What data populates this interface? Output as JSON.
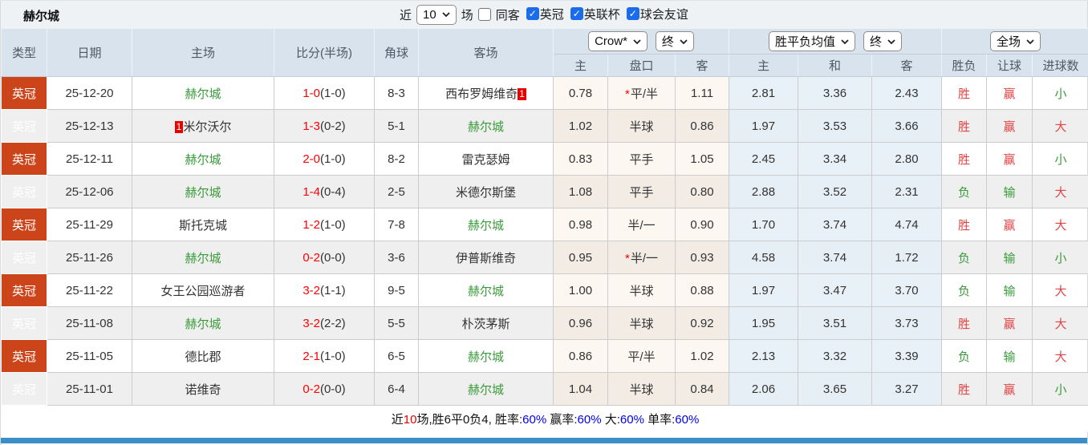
{
  "page": {
    "title": "赫尔城"
  },
  "colors": {
    "league_bg": "#cc4419",
    "self_team_green": "#3a9b3a",
    "score_red": "#ff0000",
    "win_red": "#e04444",
    "lose_green": "#3a9b3a",
    "checkbox_blue": "#1b6ceb",
    "bottom_bar_blue": "#3c8fc6",
    "header_bg": "#d9e3ed"
  },
  "controls": {
    "recent_label": "近",
    "recent_value": "10",
    "unit_label": "场",
    "same_opponent_label": "同客",
    "same_opponent_checked": false,
    "filters": [
      {
        "label": "英冠",
        "checked": true
      },
      {
        "label": "英联杯",
        "checked": true
      },
      {
        "label": "球会友谊",
        "checked": true
      }
    ]
  },
  "table": {
    "main_headers": [
      "类型",
      "日期",
      "主场",
      "比分(半场)",
      "角球",
      "客场"
    ],
    "odds_group": {
      "company_select": "Crow*",
      "state_select": "终"
    },
    "avg_group": {
      "label_select": "胜平负均值",
      "state_select": "终"
    },
    "scope_group": {
      "label_select": "全场"
    },
    "sub_headers": [
      "主",
      "盘口",
      "客",
      "主",
      "和",
      "客",
      "胜负",
      "让球",
      "进球数"
    ],
    "rows": [
      {
        "league": "英冠",
        "date": "25-12-20",
        "home": "赫尔城",
        "home_self": true,
        "home_badge_left": "",
        "home_badge_right": "",
        "score": "1-0",
        "half": "(1-0)",
        "corner": "8-3",
        "away": "西布罗姆维奇",
        "away_self": false,
        "away_badge_left": "",
        "away_badge_right": "1",
        "odds": {
          "h": "0.78",
          "star": "*",
          "hcp": "平/半",
          "a": "1.11"
        },
        "avg": {
          "h": "2.81",
          "d": "3.36",
          "a": "2.43"
        },
        "res": {
          "outcome": "胜",
          "handicap": "赢",
          "goals": "小"
        }
      },
      {
        "league": "英冠",
        "date": "25-12-13",
        "home": "米尔沃尔",
        "home_self": false,
        "home_badge_left": "1",
        "home_badge_right": "",
        "score": "1-3",
        "half": "(0-2)",
        "corner": "5-1",
        "away": "赫尔城",
        "away_self": true,
        "away_badge_left": "",
        "away_badge_right": "",
        "odds": {
          "h": "1.02",
          "star": "",
          "hcp": "半球",
          "a": "0.86"
        },
        "avg": {
          "h": "1.97",
          "d": "3.53",
          "a": "3.66"
        },
        "res": {
          "outcome": "胜",
          "handicap": "赢",
          "goals": "大"
        }
      },
      {
        "league": "英冠",
        "date": "25-12-11",
        "home": "赫尔城",
        "home_self": true,
        "home_badge_left": "",
        "home_badge_right": "",
        "score": "2-0",
        "half": "(1-0)",
        "corner": "8-2",
        "away": "雷克瑟姆",
        "away_self": false,
        "away_badge_left": "",
        "away_badge_right": "",
        "odds": {
          "h": "0.83",
          "star": "",
          "hcp": "平手",
          "a": "1.05"
        },
        "avg": {
          "h": "2.45",
          "d": "3.34",
          "a": "2.80"
        },
        "res": {
          "outcome": "胜",
          "handicap": "赢",
          "goals": "小"
        }
      },
      {
        "league": "英冠",
        "date": "25-12-06",
        "home": "赫尔城",
        "home_self": true,
        "home_badge_left": "",
        "home_badge_right": "",
        "score": "1-4",
        "half": "(0-4)",
        "corner": "2-5",
        "away": "米德尔斯堡",
        "away_self": false,
        "away_badge_left": "",
        "away_badge_right": "",
        "odds": {
          "h": "1.08",
          "star": "",
          "hcp": "平手",
          "a": "0.80"
        },
        "avg": {
          "h": "2.88",
          "d": "3.52",
          "a": "2.31"
        },
        "res": {
          "outcome": "负",
          "handicap": "输",
          "goals": "大"
        }
      },
      {
        "league": "英冠",
        "date": "25-11-29",
        "home": "斯托克城",
        "home_self": false,
        "home_badge_left": "",
        "home_badge_right": "",
        "score": "1-2",
        "half": "(1-0)",
        "corner": "7-8",
        "away": "赫尔城",
        "away_self": true,
        "away_badge_left": "",
        "away_badge_right": "",
        "odds": {
          "h": "0.98",
          "star": "",
          "hcp": "半/一",
          "a": "0.90"
        },
        "avg": {
          "h": "1.70",
          "d": "3.74",
          "a": "4.74"
        },
        "res": {
          "outcome": "胜",
          "handicap": "赢",
          "goals": "大"
        }
      },
      {
        "league": "英冠",
        "date": "25-11-26",
        "home": "赫尔城",
        "home_self": true,
        "home_badge_left": "",
        "home_badge_right": "",
        "score": "0-2",
        "half": "(0-0)",
        "corner": "3-6",
        "away": "伊普斯维奇",
        "away_self": false,
        "away_badge_left": "",
        "away_badge_right": "",
        "odds": {
          "h": "0.95",
          "star": "*",
          "hcp": "半/一",
          "a": "0.93"
        },
        "avg": {
          "h": "4.58",
          "d": "3.74",
          "a": "1.72"
        },
        "res": {
          "outcome": "负",
          "handicap": "输",
          "goals": "小"
        }
      },
      {
        "league": "英冠",
        "date": "25-11-22",
        "home": "女王公园巡游者",
        "home_self": false,
        "home_badge_left": "",
        "home_badge_right": "",
        "score": "3-2",
        "half": "(1-1)",
        "corner": "9-5",
        "away": "赫尔城",
        "away_self": true,
        "away_badge_left": "",
        "away_badge_right": "",
        "odds": {
          "h": "1.00",
          "star": "",
          "hcp": "半球",
          "a": "0.88"
        },
        "avg": {
          "h": "1.97",
          "d": "3.47",
          "a": "3.70"
        },
        "res": {
          "outcome": "负",
          "handicap": "输",
          "goals": "大"
        }
      },
      {
        "league": "英冠",
        "date": "25-11-08",
        "home": "赫尔城",
        "home_self": true,
        "home_badge_left": "",
        "home_badge_right": "",
        "score": "3-2",
        "half": "(2-2)",
        "corner": "5-5",
        "away": "朴茨茅斯",
        "away_self": false,
        "away_badge_left": "",
        "away_badge_right": "",
        "odds": {
          "h": "0.96",
          "star": "",
          "hcp": "半球",
          "a": "0.92"
        },
        "avg": {
          "h": "1.95",
          "d": "3.51",
          "a": "3.73"
        },
        "res": {
          "outcome": "胜",
          "handicap": "赢",
          "goals": "大"
        }
      },
      {
        "league": "英冠",
        "date": "25-11-05",
        "home": "德比郡",
        "home_self": false,
        "home_badge_left": "",
        "home_badge_right": "",
        "score": "2-1",
        "half": "(1-0)",
        "corner": "6-5",
        "away": "赫尔城",
        "away_self": true,
        "away_badge_left": "",
        "away_badge_right": "",
        "odds": {
          "h": "0.86",
          "star": "",
          "hcp": "平/半",
          "a": "1.02"
        },
        "avg": {
          "h": "2.13",
          "d": "3.32",
          "a": "3.39"
        },
        "res": {
          "outcome": "负",
          "handicap": "输",
          "goals": "大"
        }
      },
      {
        "league": "英冠",
        "date": "25-11-01",
        "home": "诺维奇",
        "home_self": false,
        "home_badge_left": "",
        "home_badge_right": "",
        "score": "0-2",
        "half": "(0-0)",
        "corner": "6-4",
        "away": "赫尔城",
        "away_self": true,
        "away_badge_left": "",
        "away_badge_right": "",
        "odds": {
          "h": "1.04",
          "star": "",
          "hcp": "半球",
          "a": "0.84"
        },
        "avg": {
          "h": "2.06",
          "d": "3.65",
          "a": "3.27"
        },
        "res": {
          "outcome": "胜",
          "handicap": "赢",
          "goals": "小"
        }
      }
    ]
  },
  "footer": {
    "parts": [
      {
        "text": "近",
        "color": "black"
      },
      {
        "text": "10",
        "color": "red"
      },
      {
        "text": "场,胜6平0负4, 胜率:",
        "color": "black"
      },
      {
        "text": "60%",
        "color": "blue"
      },
      {
        "text": " 赢率:",
        "color": "black"
      },
      {
        "text": "60%",
        "color": "blue"
      },
      {
        "text": " 大:",
        "color": "black"
      },
      {
        "text": "60%",
        "color": "blue"
      },
      {
        "text": " 单率:",
        "color": "black"
      },
      {
        "text": "60%",
        "color": "blue"
      }
    ]
  }
}
